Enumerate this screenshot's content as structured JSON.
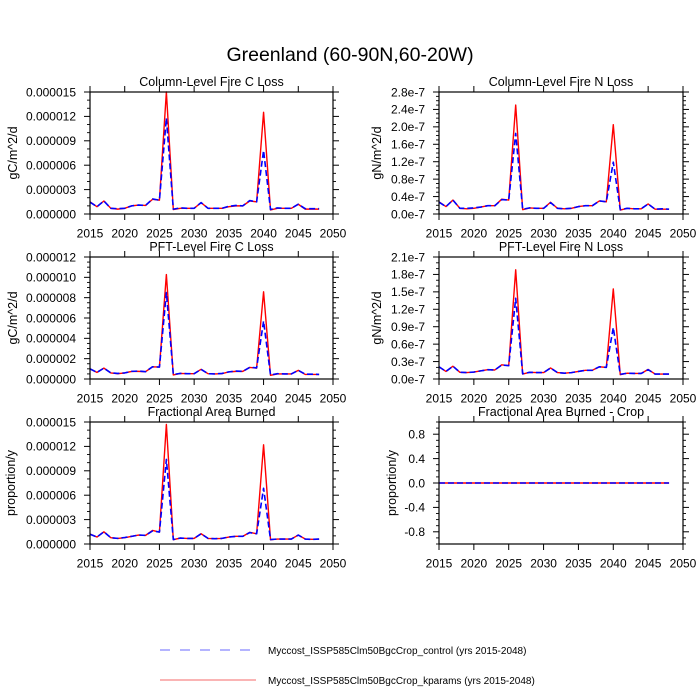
{
  "title": "Greenland (60-90N,60-20W)",
  "legend": {
    "entries": [
      {
        "label": "Myccost_ISSP585Clm50BgcCrop_control (yrs 2015-2048)",
        "color": "#6a6aff",
        "style": "dashed"
      },
      {
        "label": "Myccost_ISSP585Clm50BgcCrop_kparams (yrs 2015-2048)",
        "color": "#f46a6a",
        "style": "solid"
      }
    ]
  },
  "chart_data": [
    {
      "type": "line",
      "title": "Column-Level Fire C Loss",
      "xlabel": "",
      "ylabel": "gC/m^2/d",
      "xlim": [
        2015,
        2050
      ],
      "ylim": [
        0,
        1.5e-05
      ],
      "grid": false,
      "xticks": {
        "values": [
          2015,
          2020,
          2025,
          2030,
          2035,
          2040,
          2045,
          2050
        ],
        "labels": [
          "2015",
          "2020",
          "2025",
          "2030",
          "2035",
          "2040",
          "2045",
          "2050"
        ]
      },
      "yticks": {
        "values": [
          0,
          3e-06,
          6e-06,
          9e-06,
          1.2e-05,
          1.5e-05
        ],
        "labels": [
          "0.000000",
          "0.000003",
          "0.000006",
          "0.000009",
          "0.000012",
          "0.000015"
        ],
        "minor_step": 1e-06
      },
      "x": [
        2015,
        2016,
        2017,
        2018,
        2019,
        2020,
        2021,
        2022,
        2023,
        2024,
        2025,
        2026,
        2027,
        2028,
        2029,
        2030,
        2031,
        2032,
        2033,
        2034,
        2035,
        2036,
        2037,
        2038,
        2039,
        2040,
        2041,
        2042,
        2043,
        2044,
        2045,
        2046,
        2047,
        2048
      ],
      "series": [
        {
          "name": "Myccost_ISSP585Clm50BgcCrop_control",
          "key": "control",
          "color": "#0000ff",
          "style": "dashed",
          "values": [
            1.45e-06,
            9e-07,
            1.6e-06,
            7e-07,
            6.5e-07,
            7e-07,
            1e-06,
            1.1e-06,
            1.05e-06,
            1.85e-06,
            1.7e-06,
            1.18e-05,
            6e-07,
            7.5e-07,
            7e-07,
            7e-07,
            1.4e-06,
            7e-07,
            7e-07,
            7e-07,
            9.5e-07,
            1.05e-06,
            1e-06,
            1.65e-06,
            1.5e-06,
            7.8e-06,
            5.5e-07,
            7.5e-07,
            7e-07,
            7e-07,
            1.2e-06,
            6.5e-07,
            6.5e-07,
            6.5e-07
          ]
        },
        {
          "name": "Myccost_ISSP585Clm50BgcCrop_kparams",
          "key": "kparams",
          "color": "#ff0000",
          "style": "solid",
          "values": [
            1.5e-06,
            9e-07,
            1.6e-06,
            7e-07,
            6e-07,
            7e-07,
            1e-06,
            1.1e-06,
            1.05e-06,
            1.8e-06,
            1.7e-06,
            1.5e-05,
            5.5e-07,
            7e-07,
            7e-07,
            7e-07,
            1.4e-06,
            7e-07,
            7e-07,
            7e-07,
            9e-07,
            1e-06,
            1e-06,
            1.6e-06,
            1.5e-06,
            1.25e-05,
            5e-07,
            7e-07,
            7e-07,
            7e-07,
            1.2e-06,
            6e-07,
            6e-07,
            6e-07
          ]
        }
      ]
    },
    {
      "type": "line",
      "title": "Column-Level Fire N Loss",
      "xlabel": "",
      "ylabel": "gN/m^2/d",
      "xlim": [
        2015,
        2050
      ],
      "ylim": [
        0,
        2.8e-07
      ],
      "grid": false,
      "xticks": {
        "values": [
          2015,
          2020,
          2025,
          2030,
          2035,
          2040,
          2045,
          2050
        ],
        "labels": [
          "2015",
          "2020",
          "2025",
          "2030",
          "2035",
          "2040",
          "2045",
          "2050"
        ]
      },
      "yticks": {
        "values": [
          0,
          4e-08,
          8e-08,
          1.2e-07,
          1.6e-07,
          2e-07,
          2.4e-07,
          2.8e-07
        ],
        "labels": [
          "0.0e-7",
          "0.4e-7",
          "0.8e-7",
          "1.2e-7",
          "1.6e-7",
          "2.0e-7",
          "2.4e-7",
          "2.8e-7"
        ],
        "minor_step": 1e-08
      },
      "x": [
        2015,
        2016,
        2017,
        2018,
        2019,
        2020,
        2021,
        2022,
        2023,
        2024,
        2025,
        2026,
        2027,
        2028,
        2029,
        2030,
        2031,
        2032,
        2033,
        2034,
        2035,
        2036,
        2037,
        2038,
        2039,
        2040,
        2041,
        2042,
        2043,
        2044,
        2045,
        2046,
        2047,
        2048
      ],
      "series": [
        {
          "name": "Myccost_ISSP585Clm50BgcCrop_control",
          "key": "control",
          "color": "#0000ff",
          "style": "dashed",
          "values": [
            2.7e-08,
            1.7e-08,
            3.2e-08,
            1.3e-08,
            1.3e-08,
            1.4e-08,
            1.6e-08,
            1.9e-08,
            1.9e-08,
            3.3e-08,
            3.2e-08,
            1.85e-07,
            1.1e-08,
            1.4e-08,
            1.3e-08,
            1.3e-08,
            2.6e-08,
            1.3e-08,
            1.2e-08,
            1.3e-08,
            1.7e-08,
            1.9e-08,
            1.9e-08,
            3e-08,
            2.8e-08,
            1.19e-07,
            1e-08,
            1.3e-08,
            1.2e-08,
            1.2e-08,
            2.3e-08,
            1.1e-08,
            1.2e-08,
            1.1e-08
          ]
        },
        {
          "name": "Myccost_ISSP585Clm50BgcCrop_kparams",
          "key": "kparams",
          "color": "#ff0000",
          "style": "solid",
          "values": [
            2.8e-08,
            1.7e-08,
            3.2e-08,
            1.3e-08,
            1.2e-08,
            1.3e-08,
            1.6e-08,
            1.9e-08,
            1.9e-08,
            3.4e-08,
            3.2e-08,
            2.5e-07,
            1e-08,
            1.4e-08,
            1.3e-08,
            1.3e-08,
            2.7e-08,
            1.3e-08,
            1.2e-08,
            1.3e-08,
            1.7e-08,
            1.9e-08,
            1.9e-08,
            3e-08,
            2.8e-08,
            2.05e-07,
            9e-09,
            1.3e-08,
            1.2e-08,
            1.2e-08,
            2.3e-08,
            1.1e-08,
            1.1e-08,
            1.1e-08
          ]
        }
      ]
    },
    {
      "type": "line",
      "title": "PFT-Level Fire C Loss",
      "xlabel": "",
      "ylabel": "gC/m^2/d",
      "xlim": [
        2015,
        2050
      ],
      "ylim": [
        0,
        1.2e-05
      ],
      "grid": false,
      "xticks": {
        "values": [
          2015,
          2020,
          2025,
          2030,
          2035,
          2040,
          2045,
          2050
        ],
        "labels": [
          "2015",
          "2020",
          "2025",
          "2030",
          "2035",
          "2040",
          "2045",
          "2050"
        ]
      },
      "yticks": {
        "values": [
          0,
          2e-06,
          4e-06,
          6e-06,
          8e-06,
          1e-05,
          1.2e-05
        ],
        "labels": [
          "0.000000",
          "0.000002",
          "0.000004",
          "0.000006",
          "0.000008",
          "0.000010",
          "0.000012"
        ],
        "minor_step": 5e-07
      },
      "x": [
        2015,
        2016,
        2017,
        2018,
        2019,
        2020,
        2021,
        2022,
        2023,
        2024,
        2025,
        2026,
        2027,
        2028,
        2029,
        2030,
        2031,
        2032,
        2033,
        2034,
        2035,
        2036,
        2037,
        2038,
        2039,
        2040,
        2041,
        2042,
        2043,
        2044,
        2045,
        2046,
        2047,
        2048
      ],
      "series": [
        {
          "name": "Myccost_ISSP585Clm50BgcCrop_control",
          "key": "control",
          "color": "#0000ff",
          "style": "dashed",
          "values": [
            1e-06,
            6.5e-07,
            1.07e-06,
            6e-07,
            5.5e-07,
            6e-07,
            7.5e-07,
            7.8e-07,
            7.2e-07,
            1.2e-06,
            1.17e-06,
            8.5e-06,
            4.5e-07,
            5.5e-07,
            5.2e-07,
            5.2e-07,
            9.5e-07,
            5.2e-07,
            5e-07,
            5.5e-07,
            7e-07,
            7.8e-07,
            7.5e-07,
            1.14e-06,
            1.1e-06,
            5.7e-06,
            4e-07,
            5.2e-07,
            5e-07,
            5e-07,
            8.5e-07,
            4.8e-07,
            4.7e-07,
            4.5e-07
          ]
        },
        {
          "name": "Myccost_ISSP585Clm50BgcCrop_kparams",
          "key": "kparams",
          "color": "#ff0000",
          "style": "solid",
          "values": [
            1e-06,
            6.5e-07,
            1.07e-06,
            6e-07,
            5.2e-07,
            6e-07,
            7.5e-07,
            7.5e-07,
            7.2e-07,
            1.2e-06,
            1.17e-06,
            1.027e-05,
            4e-07,
            5.5e-07,
            5.2e-07,
            5.2e-07,
            9.5e-07,
            5.2e-07,
            5e-07,
            5.2e-07,
            7e-07,
            7.5e-07,
            7.5e-07,
            1.14e-06,
            1.07e-06,
            8.57e-06,
            3.6e-07,
            5e-07,
            5e-07,
            5e-07,
            8.5e-07,
            4.5e-07,
            4.5e-07,
            4.5e-07
          ]
        }
      ]
    },
    {
      "type": "line",
      "title": "PFT-Level Fire N Loss",
      "xlabel": "",
      "ylabel": "gN/m^2/d",
      "xlim": [
        2015,
        2050
      ],
      "ylim": [
        0,
        2.1e-07
      ],
      "grid": false,
      "xticks": {
        "values": [
          2015,
          2020,
          2025,
          2030,
          2035,
          2040,
          2045,
          2050
        ],
        "labels": [
          "2015",
          "2020",
          "2025",
          "2030",
          "2035",
          "2040",
          "2045",
          "2050"
        ]
      },
      "yticks": {
        "values": [
          0,
          3e-08,
          6e-08,
          9e-08,
          1.2e-07,
          1.5e-07,
          1.8e-07,
          2.1e-07
        ],
        "labels": [
          "0.0e-7",
          "0.3e-7",
          "0.6e-7",
          "0.9e-7",
          "1.2e-7",
          "1.5e-7",
          "1.8e-7",
          "2.1e-7"
        ],
        "minor_step": 1e-08
      },
      "x": [
        2015,
        2016,
        2017,
        2018,
        2019,
        2020,
        2021,
        2022,
        2023,
        2024,
        2025,
        2026,
        2027,
        2028,
        2029,
        2030,
        2031,
        2032,
        2033,
        2034,
        2035,
        2036,
        2037,
        2038,
        2039,
        2040,
        2041,
        2042,
        2043,
        2044,
        2045,
        2046,
        2047,
        2048
      ],
      "series": [
        {
          "name": "Myccost_ISSP585Clm50BgcCrop_control",
          "key": "control",
          "color": "#0000ff",
          "style": "dashed",
          "values": [
            2.1e-08,
            1.3e-08,
            2.2e-08,
            1.15e-08,
            1.1e-08,
            1.2e-08,
            1.4e-08,
            1.6e-08,
            1.55e-08,
            2.4e-08,
            2.3e-08,
            1.39e-07,
            9e-09,
            1.15e-08,
            1.1e-08,
            1.1e-08,
            1.9e-08,
            1.1e-08,
            1e-08,
            1.1e-08,
            1.3e-08,
            1.5e-08,
            1.5e-08,
            2.1e-08,
            2e-08,
            8.85e-08,
            8e-09,
            1e-08,
            9.5e-09,
            9.5e-09,
            1.6e-08,
            8.5e-09,
            8.5e-09,
            8.5e-09
          ]
        },
        {
          "name": "Myccost_ISSP585Clm50BgcCrop_kparams",
          "key": "kparams",
          "color": "#ff0000",
          "style": "solid",
          "values": [
            2.1e-08,
            1.3e-08,
            2.2e-08,
            1.15e-08,
            1.1e-08,
            1.2e-08,
            1.4e-08,
            1.6e-08,
            1.55e-08,
            2.45e-08,
            2.3e-08,
            1.88e-07,
            8.5e-09,
            1.15e-08,
            1.1e-08,
            1.1e-08,
            1.9e-08,
            1.1e-08,
            1e-08,
            1.1e-08,
            1.3e-08,
            1.5e-08,
            1.5e-08,
            2.1e-08,
            2e-08,
            1.55e-07,
            7.5e-09,
            1e-08,
            9.5e-09,
            9.5e-09,
            1.65e-08,
            8.5e-09,
            8.5e-09,
            8.5e-09
          ]
        }
      ]
    },
    {
      "type": "line",
      "title": "Fractional Area Burned",
      "xlabel": "",
      "ylabel": "proportion/y",
      "xlim": [
        2015,
        2050
      ],
      "ylim": [
        0,
        1.5e-05
      ],
      "grid": false,
      "xticks": {
        "values": [
          2015,
          2020,
          2025,
          2030,
          2035,
          2040,
          2045,
          2050
        ],
        "labels": [
          "2015",
          "2020",
          "2025",
          "2030",
          "2035",
          "2040",
          "2045",
          "2050"
        ]
      },
      "yticks": {
        "values": [
          0,
          3e-06,
          6e-06,
          9e-06,
          1.2e-05,
          1.5e-05
        ],
        "labels": [
          "0.000000",
          "0.000003",
          "0.000006",
          "0.000009",
          "0.000012",
          "0.000015"
        ],
        "minor_step": 1e-06
      },
      "x": [
        2015,
        2016,
        2017,
        2018,
        2019,
        2020,
        2021,
        2022,
        2023,
        2024,
        2025,
        2026,
        2027,
        2028,
        2029,
        2030,
        2031,
        2032,
        2033,
        2034,
        2035,
        2036,
        2037,
        2038,
        2039,
        2040,
        2041,
        2042,
        2043,
        2044,
        2045,
        2046,
        2047,
        2048
      ],
      "series": [
        {
          "name": "Myccost_ISSP585Clm50BgcCrop_control",
          "key": "control",
          "color": "#0000ff",
          "style": "dashed",
          "values": [
            1.2e-06,
            8.6e-07,
            1.5e-06,
            7.7e-07,
            6.9e-07,
            8e-07,
            9.4e-07,
            1.1e-06,
            1.06e-06,
            1.6e-06,
            1.47e-06,
            1.04e-05,
            5.5e-07,
            7.3e-07,
            6.9e-07,
            6.9e-07,
            1.26e-06,
            6.9e-07,
            6.5e-07,
            6.9e-07,
            8.6e-07,
            9.4e-07,
            9.4e-07,
            1.4e-06,
            1.26e-06,
            6.85e-06,
            5.5e-07,
            6.1e-07,
            6.1e-07,
            6.1e-07,
            1.1e-06,
            6.1e-07,
            5.7e-07,
            6.1e-07
          ]
        },
        {
          "name": "Myccost_ISSP585Clm50BgcCrop_kparams",
          "key": "kparams",
          "color": "#ff0000",
          "style": "solid",
          "values": [
            1.22e-06,
            8.6e-07,
            1.5e-06,
            7.7e-07,
            6.9e-07,
            7.7e-07,
            9.4e-07,
            1.1e-06,
            1.06e-06,
            1.67e-06,
            1.47e-06,
            1.47e-05,
            5.3e-07,
            7.3e-07,
            6.9e-07,
            6.9e-07,
            1.26e-06,
            6.9e-07,
            6.5e-07,
            6.9e-07,
            8.6e-07,
            9.4e-07,
            9.4e-07,
            1.43e-06,
            1.26e-06,
            1.22e-05,
            5.3e-07,
            6.1e-07,
            6.1e-07,
            6.1e-07,
            1.1e-06,
            6.1e-07,
            5.7e-07,
            6.1e-07
          ]
        }
      ]
    },
    {
      "type": "line",
      "title": "Fractional Area Burned - Crop",
      "xlabel": "",
      "ylabel": "proportion/y",
      "xlim": [
        2015,
        2050
      ],
      "ylim": [
        -1,
        1
      ],
      "grid": false,
      "xticks": {
        "values": [
          2015,
          2020,
          2025,
          2030,
          2035,
          2040,
          2045,
          2050
        ],
        "labels": [
          "2015",
          "2020",
          "2025",
          "2030",
          "2035",
          "2040",
          "2045",
          "2050"
        ]
      },
      "yticks": {
        "values": [
          -0.8,
          -0.4,
          0,
          0.4,
          0.8
        ],
        "labels": [
          "-0.8",
          "-0.4",
          "0.0",
          "0.4",
          "0.8"
        ],
        "minor_step": 0.1
      },
      "x": [
        2015,
        2016,
        2017,
        2018,
        2019,
        2020,
        2021,
        2022,
        2023,
        2024,
        2025,
        2026,
        2027,
        2028,
        2029,
        2030,
        2031,
        2032,
        2033,
        2034,
        2035,
        2036,
        2037,
        2038,
        2039,
        2040,
        2041,
        2042,
        2043,
        2044,
        2045,
        2046,
        2047,
        2048
      ],
      "series": [
        {
          "name": "Myccost_ISSP585Clm50BgcCrop_control",
          "key": "control",
          "color": "#0000ff",
          "style": "dashed",
          "values": [
            0,
            0,
            0,
            0,
            0,
            0,
            0,
            0,
            0,
            0,
            0,
            0,
            0,
            0,
            0,
            0,
            0,
            0,
            0,
            0,
            0,
            0,
            0,
            0,
            0,
            0,
            0,
            0,
            0,
            0,
            0,
            0,
            0,
            0
          ]
        },
        {
          "name": "Myccost_ISSP585Clm50BgcCrop_kparams",
          "key": "kparams",
          "color": "#ff0000",
          "style": "solid",
          "values": [
            0,
            0,
            0,
            0,
            0,
            0,
            0,
            0,
            0,
            0,
            0,
            0,
            0,
            0,
            0,
            0,
            0,
            0,
            0,
            0,
            0,
            0,
            0,
            0,
            0,
            0,
            0,
            0,
            0,
            0,
            0,
            0,
            0,
            0
          ]
        }
      ]
    }
  ]
}
